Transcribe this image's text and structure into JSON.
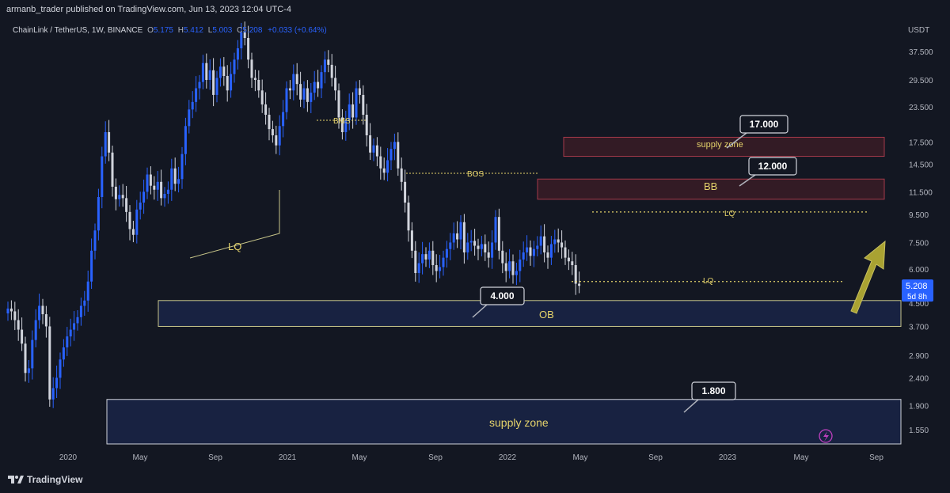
{
  "publisher_line": "armanb_trader published on TradingView.com, Jun 13, 2023 12:04 UTC-4",
  "legend": {
    "symbol": "ChainLink / TetherUS, 1W, BINANCE",
    "o_label": "O",
    "o_value": "5.175",
    "h_label": "H",
    "h_value": "5.412",
    "l_label": "L",
    "l_value": "5.003",
    "c_label": "C",
    "c_value": "5.208",
    "change": "+0.033 (+0.64%)"
  },
  "branding": "TradingView",
  "colors": {
    "background": "#131722",
    "bullish": "#2962ff",
    "bearish": "#d1d4dc",
    "supply_zone_fill": "#3a1c26",
    "supply_zone_border": "#a63a4a",
    "demand_zone_fill": "#1a2547",
    "annotation_yellow": "#e5d36b"
  },
  "chart_data": {
    "type": "candlestick",
    "title": "ChainLink / TetherUS, 1W, BINANCE",
    "y_unit": "USDT",
    "y_scale": "log",
    "ylim": [
      1.33,
      46
    ],
    "grid": false,
    "price_ticks": [
      "37.500",
      "29.500",
      "23.500",
      "17.500",
      "14.500",
      "11.500",
      "9.500",
      "7.500",
      "6.000",
      "4.500",
      "3.700",
      "2.900",
      "2.400",
      "1.900",
      "1.550"
    ],
    "time_ticks": [
      "2020",
      "May",
      "Sep",
      "2021",
      "May",
      "Sep",
      "2022",
      "May",
      "Sep",
      "2023",
      "May",
      "Sep"
    ],
    "last_price": {
      "value": "5.208",
      "countdown": "5d 8h"
    },
    "approx_weekly_closes": [
      4.3,
      4.2,
      3.9,
      3.6,
      3.2,
      2.5,
      2.6,
      3.3,
      3.9,
      4.4,
      4.1,
      3.7,
      2.0,
      2.2,
      2.4,
      2.8,
      3.1,
      3.4,
      3.6,
      3.8,
      4.0,
      4.4,
      4.6,
      5.4,
      7.0,
      8.3,
      11.0,
      15.5,
      19.0,
      16.0,
      12.0,
      10.8,
      11.2,
      10.9,
      9.7,
      8.4,
      8.0,
      9.9,
      10.5,
      11.5,
      13.3,
      12.1,
      11.7,
      12.5,
      10.9,
      11.3,
      11.7,
      14.0,
      12.3,
      12.8,
      15.8,
      20.0,
      23.0,
      24.5,
      27.5,
      29.0,
      34.0,
      29.5,
      32.0,
      26.0,
      30.0,
      33.0,
      30.5,
      27.0,
      31.0,
      35.0,
      38.5,
      44.0,
      42.0,
      35.0,
      30.0,
      29.5,
      27.0,
      24.0,
      22.0,
      19.5,
      18.5,
      17.0,
      20.0,
      22.5,
      27.5,
      27.0,
      31.0,
      28.5,
      25.0,
      27.5,
      24.5,
      26.5,
      29.0,
      27.5,
      31.5,
      35.0,
      33.5,
      30.0,
      27.0,
      21.5,
      19.0,
      21.0,
      24.0,
      21.5,
      27.5,
      26.0,
      22.0,
      18.5,
      16.0,
      17.0,
      15.5,
      14.0,
      13.5,
      15.0,
      16.5,
      17.5,
      14.0,
      12.5,
      10.5,
      8.3,
      7.0,
      5.8,
      6.3,
      6.8,
      6.5,
      7.0,
      6.2,
      5.9,
      6.1,
      6.6,
      7.1,
      7.5,
      8.1,
      7.7,
      8.9,
      6.9,
      7.5,
      7.6,
      7.3,
      7.1,
      7.4,
      6.9,
      6.6,
      7.5,
      9.3,
      7.0,
      6.3,
      5.9,
      6.4,
      5.7,
      5.9,
      6.5,
      6.9,
      7.2,
      6.7,
      7.1,
      7.3,
      7.9,
      6.9,
      6.6,
      7.4,
      7.7,
      7.5,
      7.2,
      6.6,
      6.4,
      6.2,
      5.3,
      5.208
    ],
    "zones": [
      {
        "label": "supply zone",
        "low": 15.5,
        "high": 18.2,
        "kind": "supply"
      },
      {
        "label": "BB",
        "low": 10.8,
        "high": 12.8,
        "kind": "supply"
      },
      {
        "label": "OB",
        "low": 3.7,
        "high": 4.6,
        "kind": "demand"
      },
      {
        "label": "supply zone",
        "low": 1.33,
        "high": 2.0,
        "kind": "demand"
      }
    ],
    "callouts": [
      "17.000",
      "12.000",
      "4.000",
      "1.800"
    ],
    "annotations": [
      "BMS",
      "BOS",
      "LQ",
      "LQ",
      "LQ"
    ],
    "lines": [
      {
        "label": "LQ",
        "value": 9.7,
        "style": "dotted"
      },
      {
        "label": "LQ",
        "value": 5.4,
        "style": "dotted"
      }
    ]
  }
}
